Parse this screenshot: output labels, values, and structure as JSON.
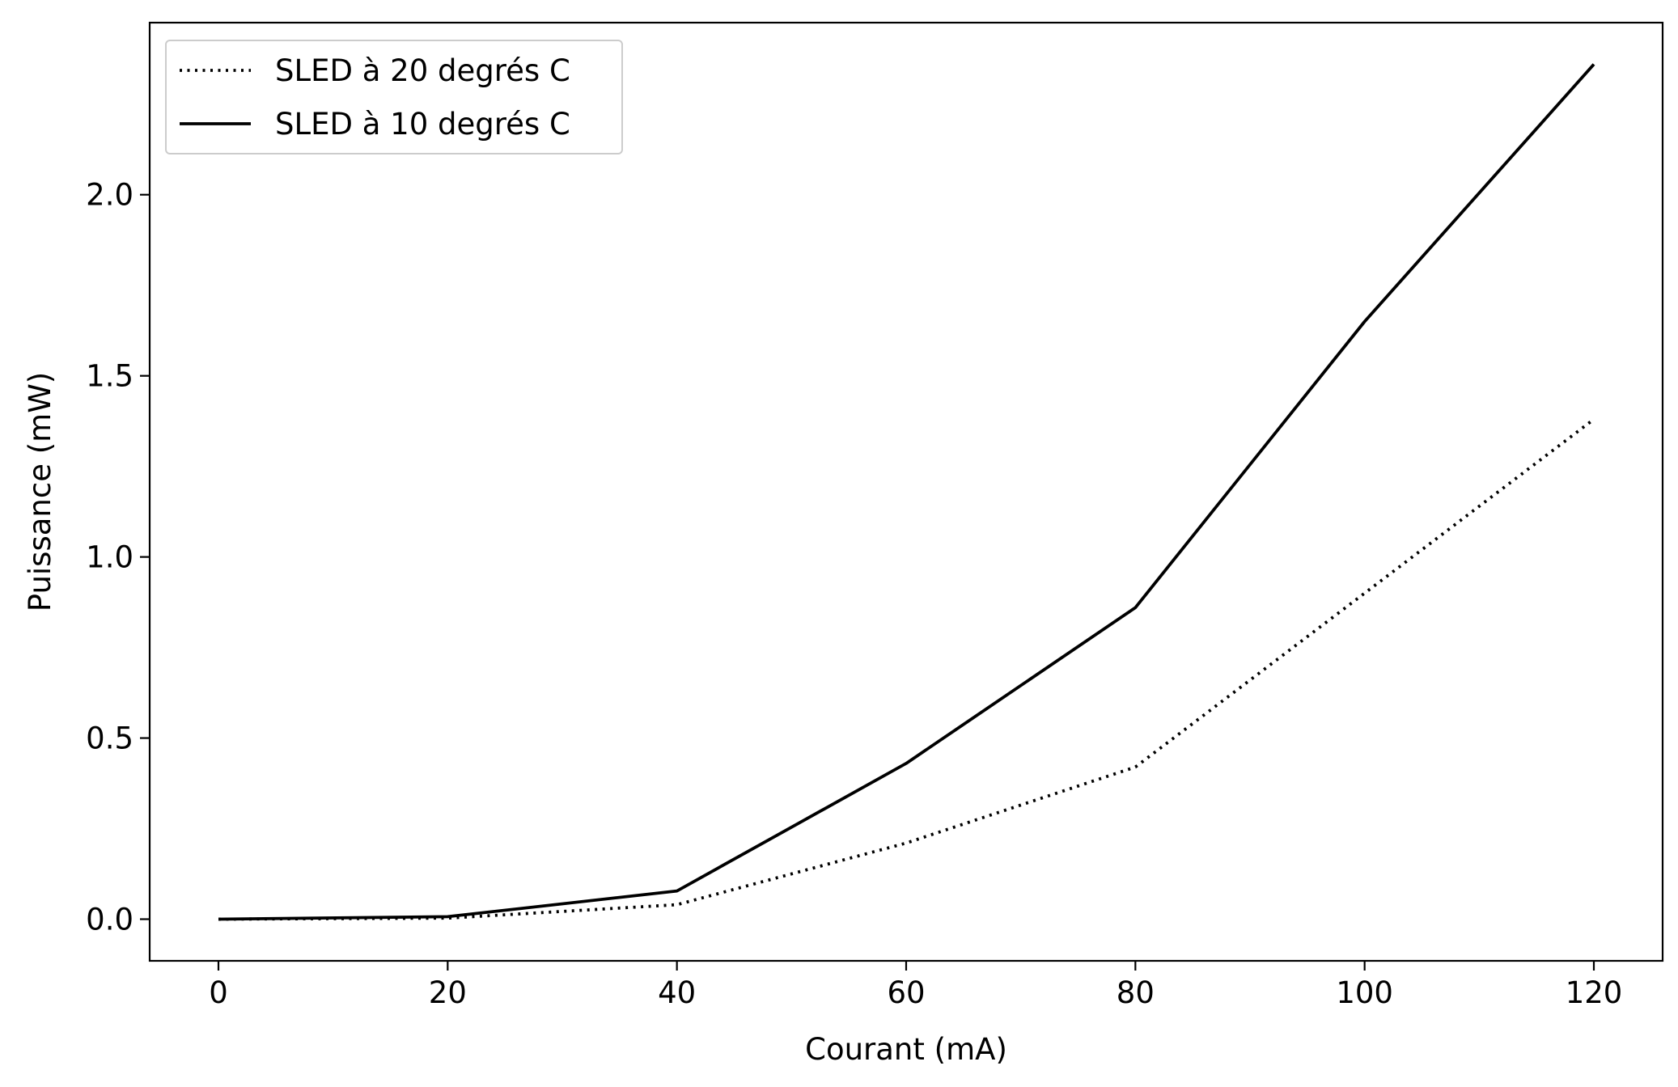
{
  "chart_data": {
    "type": "line",
    "title": "",
    "xlabel": "Courant (mA)",
    "ylabel": "Puissance (mW)",
    "x": [
      0,
      20,
      40,
      60,
      80,
      100,
      120
    ],
    "xlim": [
      -6,
      126
    ],
    "ylim": [
      -0.115,
      2.475
    ],
    "xticks": [
      0,
      20,
      40,
      60,
      80,
      100,
      120
    ],
    "xtick_labels": [
      "0",
      "20",
      "40",
      "60",
      "80",
      "100",
      "120"
    ],
    "yticks": [
      0.0,
      0.5,
      1.0,
      1.5,
      2.0
    ],
    "ytick_labels": [
      "0.0",
      "0.5",
      "1.0",
      "1.5",
      "2.0"
    ],
    "grid": false,
    "legend_position": "top-left",
    "series": [
      {
        "name": "SLED à 20 degrés C",
        "style": "dotted",
        "color": "#000000",
        "values": [
          0.0,
          0.003,
          0.04,
          0.21,
          0.42,
          0.9,
          1.38
        ]
      },
      {
        "name": "SLED à 10 degrés C",
        "style": "solid",
        "color": "#000000",
        "values": [
          0.0,
          0.007,
          0.078,
          0.43,
          0.86,
          1.65,
          2.36
        ]
      }
    ]
  }
}
